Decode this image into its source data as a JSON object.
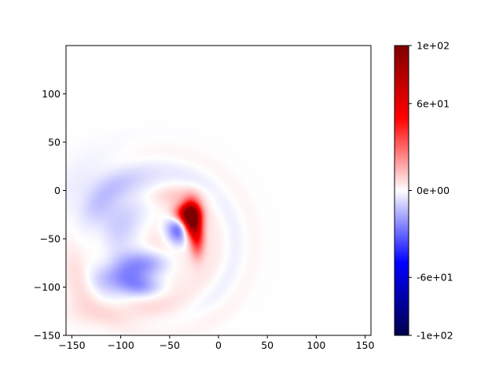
{
  "chart_data": {
    "type": "heatmap",
    "title": "",
    "xlabel": "",
    "ylabel": "",
    "xlim": [
      -156,
      156
    ],
    "ylim": [
      -150,
      150
    ],
    "x_ticks": [
      -150,
      -100,
      -50,
      0,
      50,
      100,
      150
    ],
    "x_tick_labels": [
      "−150",
      "−100",
      "−50",
      "0",
      "50",
      "100",
      "150"
    ],
    "y_ticks": [
      -150,
      -100,
      -50,
      0,
      50,
      100
    ],
    "y_tick_labels": [
      "−150",
      "−100",
      "−50",
      "0",
      "50",
      "100"
    ],
    "grid": false,
    "colormap": "seismic",
    "colormap_stops": [
      "#00004c",
      "#0000ff",
      "#ffffff",
      "#ff0000",
      "#7f0000"
    ],
    "colorbar": {
      "range": [
        -100,
        100
      ],
      "ticks": [
        -100,
        -60,
        0,
        60,
        100
      ],
      "tick_labels": [
        "-1e+02",
        "-6e+01",
        "0e+00",
        "6e+01",
        "1e+02"
      ]
    },
    "features": [
      {
        "kind": "positive",
        "cx": -28,
        "cy": -30,
        "sx": 6,
        "sy": 12,
        "value": 100
      },
      {
        "kind": "positive",
        "cx": -34,
        "cy": -24,
        "sx": 9,
        "sy": 7,
        "value": 60
      },
      {
        "kind": "positive",
        "cx": -22,
        "cy": -48,
        "sx": 5,
        "sy": 14,
        "value": 40
      },
      {
        "kind": "positive",
        "cx": -60,
        "cy": -60,
        "sx": 30,
        "sy": 28,
        "value": 12
      },
      {
        "kind": "positive",
        "cx": -45,
        "cy": -5,
        "sx": 20,
        "sy": 8,
        "value": 10
      },
      {
        "kind": "positive",
        "cx": -90,
        "cy": -125,
        "sx": 40,
        "sy": 10,
        "value": 8
      },
      {
        "kind": "positive",
        "cx": -140,
        "cy": -80,
        "sx": 12,
        "sy": 30,
        "value": 7
      },
      {
        "kind": "negative",
        "cx": -40,
        "cy": -40,
        "sx": 10,
        "sy": 12,
        "value": -40
      },
      {
        "kind": "negative",
        "cx": -75,
        "cy": -75,
        "sx": 20,
        "sy": 10,
        "value": -25
      },
      {
        "kind": "negative",
        "cx": -100,
        "cy": -90,
        "sx": 18,
        "sy": 10,
        "value": -20
      },
      {
        "kind": "negative",
        "cx": -80,
        "cy": -100,
        "sx": 15,
        "sy": 8,
        "value": -18
      },
      {
        "kind": "negative",
        "cx": -115,
        "cy": -15,
        "sx": 28,
        "sy": 28,
        "value": -10
      },
      {
        "kind": "negative",
        "cx": -95,
        "cy": -45,
        "sx": 25,
        "sy": 20,
        "value": -8
      },
      {
        "kind": "negative",
        "cx": -70,
        "cy": 5,
        "sx": 30,
        "sy": 10,
        "value": -5
      },
      {
        "kind": "positive",
        "cx": -130,
        "cy": -40,
        "sx": 10,
        "sy": 15,
        "value": 5
      }
    ]
  }
}
